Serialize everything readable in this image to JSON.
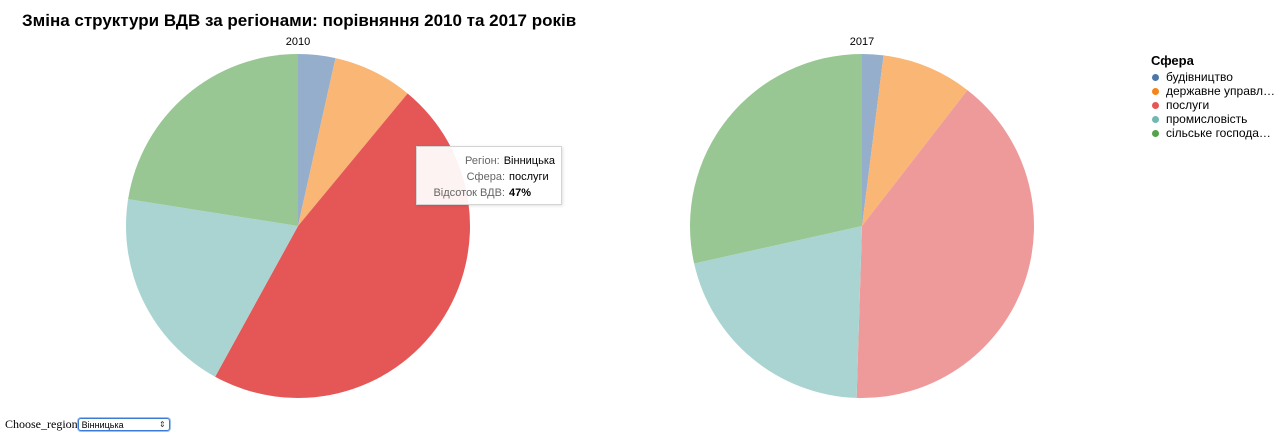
{
  "title": "Зміна структури ВДВ за регіонами: порівняння 2010 та 2017 років",
  "legend": {
    "title": "Сфера",
    "items": [
      {
        "label": "будівництво",
        "color": "#4c78a8"
      },
      {
        "label": "державне управл…",
        "color": "#f58518"
      },
      {
        "label": "послуги",
        "color": "#e45756"
      },
      {
        "label": "промисловість",
        "color": "#72b7b2"
      },
      {
        "label": "сільське господа…",
        "color": "#54a24b"
      }
    ]
  },
  "chart_data": [
    {
      "type": "pie",
      "title": "2010",
      "labels": [
        "будівництво",
        "державне управління",
        "послуги",
        "промисловість",
        "сільське господарство"
      ],
      "values": [
        3.5,
        7.5,
        47,
        19.5,
        22.5
      ],
      "colors": [
        "#4c78a8",
        "#f58518",
        "#e45756",
        "#72b7b2",
        "#54a24b"
      ]
    },
    {
      "type": "pie",
      "title": "2017",
      "labels": [
        "будівництво",
        "державне управління",
        "послуги",
        "промисловість",
        "сільське господарство"
      ],
      "values": [
        2,
        8.5,
        40,
        21,
        28.5
      ],
      "colors": [
        "#4c78a8",
        "#f58518",
        "#e45756",
        "#72b7b2",
        "#54a24b"
      ]
    }
  ],
  "tooltip": {
    "rows": [
      {
        "key": "Регіон:",
        "value": "Вінницька"
      },
      {
        "key": "Сфера:",
        "value": "послуги"
      },
      {
        "key": "Відсоток ВДВ:",
        "value": "47%"
      }
    ]
  },
  "controls": {
    "label": "Choose_region",
    "selected": "Вінницька"
  }
}
